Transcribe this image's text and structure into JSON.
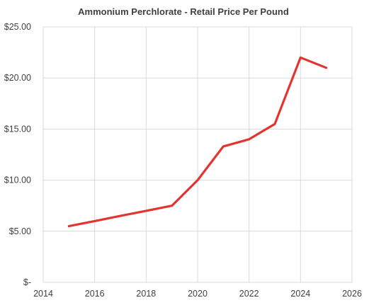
{
  "chart_data": {
    "type": "line",
    "title": "Ammonium Perchlorate - Retail Price Per Pound",
    "xlabel": "",
    "ylabel": "",
    "x": [
      2015,
      2016,
      2017,
      2018,
      2019,
      2020,
      2021,
      2022,
      2023,
      2024,
      2025
    ],
    "series": [
      {
        "values": [
          5.5,
          6.0,
          6.5,
          7.0,
          7.5,
          10.0,
          13.3,
          14.0,
          15.5,
          22.0,
          21.0
        ]
      }
    ],
    "xlim": [
      2014,
      2026
    ],
    "ylim": [
      0,
      25
    ],
    "x_ticks": [
      2014,
      2016,
      2018,
      2020,
      2022,
      2024,
      2026
    ],
    "x_tick_labels": [
      "2014",
      "2016",
      "2018",
      "2020",
      "2022",
      "2024",
      "2026"
    ],
    "y_ticks": [
      0,
      5,
      10,
      15,
      20,
      25
    ],
    "y_tick_labels": [
      "$-",
      "$5.00",
      "$10.00",
      "$15.00",
      "$20.00",
      "$25.00"
    ],
    "grid": true,
    "legend": "none",
    "colors": {
      "series": "#e3342f",
      "grid": "#d9d9d9",
      "text": "#404040"
    }
  }
}
